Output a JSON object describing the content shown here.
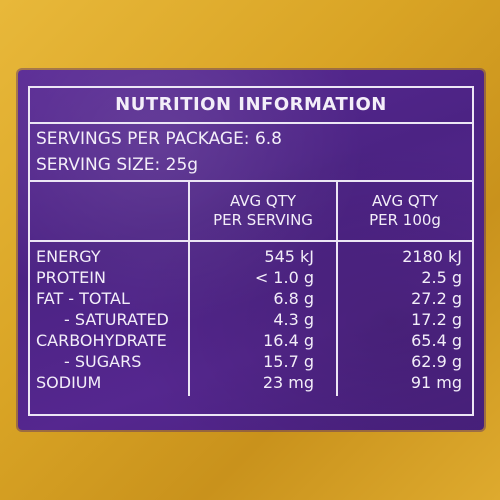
{
  "title": "NUTRITION INFORMATION",
  "servings_per_package": "SERVINGS PER PACKAGE: 6.8",
  "serving_size": "SERVING SIZE: 25g",
  "columns": {
    "per_serving": [
      "AVG QTY",
      "PER SERVING"
    ],
    "per_100g": [
      "AVG QTY",
      "PER 100g"
    ]
  },
  "rows": [
    {
      "label": "ENERGY",
      "per_serving": "545 kJ",
      "per_100g": "2180 kJ"
    },
    {
      "label": "PROTEIN",
      "per_serving": "< 1.0 g",
      "per_100g": "2.5 g"
    },
    {
      "label": "FAT - TOTAL",
      "per_serving": "6.8 g",
      "per_100g": "27.2 g"
    },
    {
      "label": "- SATURATED",
      "per_serving": "4.3 g",
      "per_100g": "17.2 g"
    },
    {
      "label": "CARBOHYDRATE",
      "per_serving": "16.4 g",
      "per_100g": "65.4 g"
    },
    {
      "label": "- SUGARS",
      "per_serving": "15.7 g",
      "per_100g": "62.9 g"
    },
    {
      "label": "SODIUM",
      "per_serving": "23 mg",
      "per_100g": "91 mg"
    }
  ],
  "colors": {
    "wrapper_gold": "#d9a425",
    "panel_purple": "#4c2384",
    "text": "#f3eef9"
  }
}
